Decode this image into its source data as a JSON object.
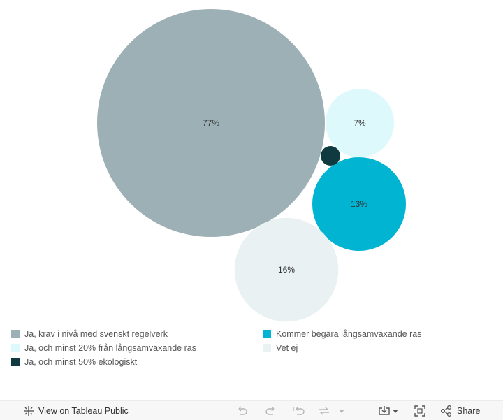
{
  "chart_data": {
    "type": "bubble",
    "bubbles": [
      {
        "category": "Ja, krav i nivå med svenskt regelverk",
        "value": 77,
        "label": "77%",
        "color": "#9db0b5"
      },
      {
        "category": "Kommer begära långsamväxande ras",
        "value": 13,
        "label": "13%",
        "color": "#00b4d2"
      },
      {
        "category": "Ja, och minst 20% från långsamväxande ras",
        "value": 7,
        "label": "7%",
        "color": "#ddf9fc"
      },
      {
        "category": "Ja, och minst 50% ekologiskt",
        "value": 1,
        "label": "",
        "color": "#0f3a3f"
      },
      {
        "category": "Vet ej",
        "value": 16,
        "label": "16%",
        "color": "#e9f1f2"
      }
    ]
  },
  "legend": {
    "items": [
      {
        "label": "Ja, krav i nivå med svenskt regelverk",
        "color": "#9db0b5"
      },
      {
        "label": "Ja, och minst 20% från långsamväxande ras",
        "color": "#ddf9fc"
      },
      {
        "label": "Ja, och minst 50% ekologiskt",
        "color": "#0f3a3f"
      },
      {
        "label": "Kommer begära långsamväxande ras",
        "color": "#00b4d2"
      },
      {
        "label": "Vet ej",
        "color": "#e9f1f2"
      }
    ]
  },
  "toolbar": {
    "view_label": "View on Tableau Public",
    "share_label": "Share",
    "icons": [
      "tableau-logo-icon",
      "undo-icon",
      "redo-icon",
      "revert-icon",
      "refresh-icon",
      "download-icon",
      "fullscreen-icon",
      "share-icon"
    ]
  }
}
